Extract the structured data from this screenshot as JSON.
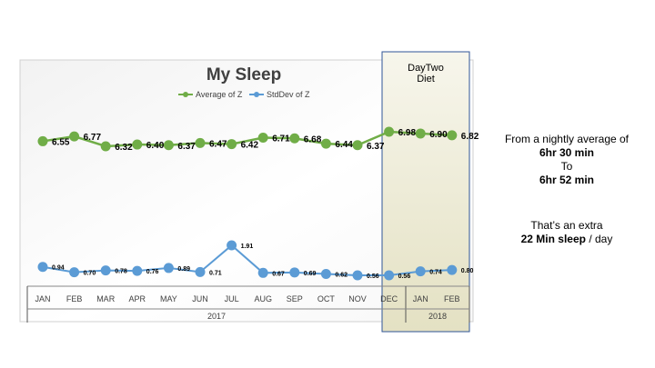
{
  "chart_data": {
    "type": "line",
    "title": "My Sleep",
    "annotation": "DayTwo Diet",
    "annotation_lines": [
      "DayTwo",
      "Diet"
    ],
    "categories": [
      "JAN",
      "FEB",
      "MAR",
      "APR",
      "MAY",
      "JUN",
      "JUL",
      "AUG",
      "SEP",
      "OCT",
      "NOV",
      "DEC",
      "JAN",
      "FEB"
    ],
    "year_groups": [
      {
        "label": "2017",
        "start": 0,
        "end": 11
      },
      {
        "label": "2018",
        "start": 12,
        "end": 13
      }
    ],
    "highlight_range": [
      11,
      13
    ],
    "legend_position": "top",
    "series": [
      {
        "name": "Average of Z",
        "color": "#70AD47",
        "values": [
          6.55,
          6.77,
          6.32,
          6.4,
          6.37,
          6.47,
          6.42,
          6.71,
          6.68,
          6.44,
          6.37,
          6.98,
          6.9,
          6.82
        ],
        "labels": [
          "6.55",
          "6.77",
          "6.32",
          "6.40",
          "6.37",
          "6.47",
          "6.42",
          "6.71",
          "6.68",
          "6.44",
          "6.37",
          "6.98",
          "6.90",
          "6.82"
        ]
      },
      {
        "name": "StdDev of Z",
        "color": "#5B9BD5",
        "values": [
          0.94,
          0.7,
          0.78,
          0.76,
          0.89,
          0.71,
          1.91,
          0.67,
          0.69,
          0.62,
          0.56,
          0.56,
          0.74,
          0.8
        ],
        "labels": [
          "0.94",
          "0.70",
          "0.78",
          "0.76",
          "0.89",
          "0.71",
          "1.91",
          "0.67",
          "0.69",
          "0.62",
          "0.56",
          "0.56",
          "0.74",
          "0.80"
        ]
      }
    ],
    "grid": false
  },
  "side_note": {
    "line1": "From a nightly average of",
    "line2": "6hr 30 min",
    "line3": "To",
    "line4": "6hr 52 min",
    "line5": "That’s an extra",
    "line6_bold": "22 Min sleep",
    "line6_rest": " / day"
  },
  "colors": {
    "avg_line": "#70AD47",
    "std_line": "#5B9BD5",
    "highlight_fill": "#EDEBD5",
    "highlight_border": "#2F5597"
  }
}
